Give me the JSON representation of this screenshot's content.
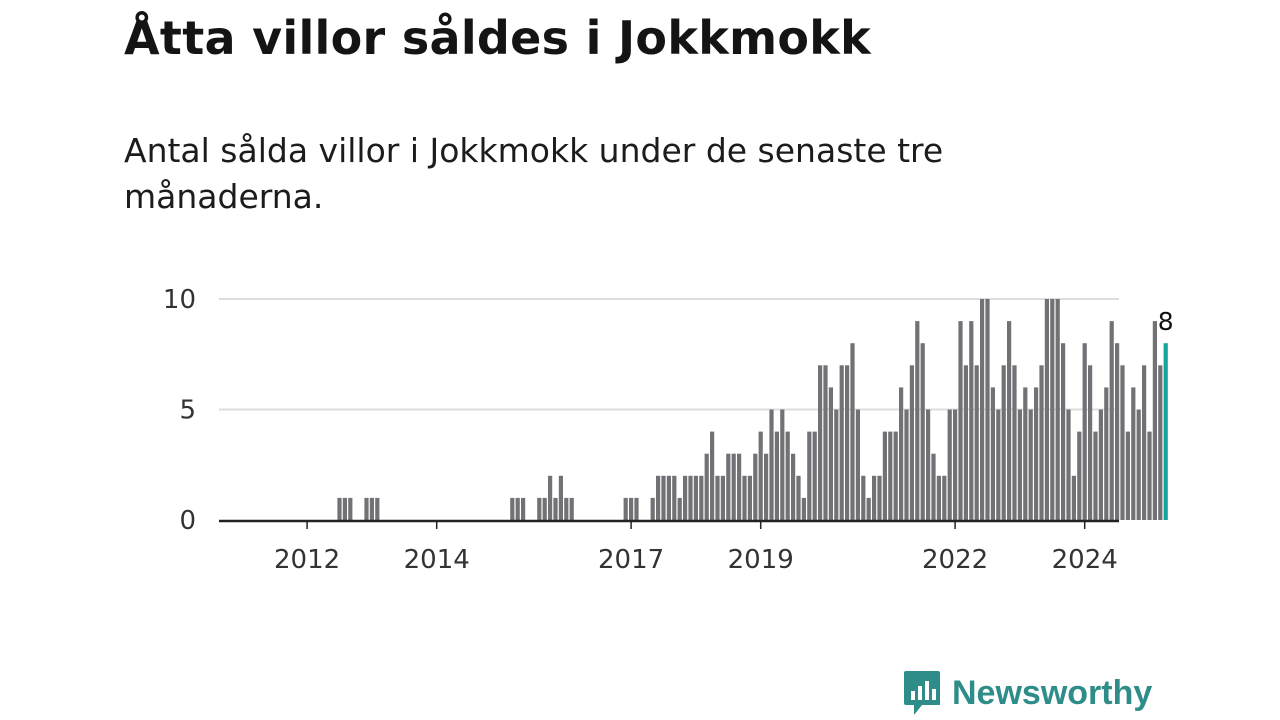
{
  "title": "Åtta villor såldes i Jokkmokk",
  "subtitle": "Antal sålda villor i Jokkmokk under de senaste tre månaderna.",
  "brand": {
    "name": "Newsworthy"
  },
  "colors": {
    "bar": "#727176",
    "highlight": "#18a39d",
    "grid": "#dddddd",
    "axis": "#222222",
    "brand": "#2f8d89"
  },
  "chart_data": {
    "type": "bar",
    "title": "Åtta villor såldes i Jokkmokk",
    "subtitle": "Antal sålda villor i Jokkmokk under de senaste tre månaderna.",
    "xlabel": "",
    "ylabel": "",
    "ylim": [
      0,
      10
    ],
    "yticks": [
      0,
      5,
      10
    ],
    "grid": true,
    "x_start": "2011-08",
    "x_tick_labels": [
      {
        "label": "2012",
        "index": 5
      },
      {
        "label": "2014",
        "index": 29
      },
      {
        "label": "2017",
        "index": 65
      },
      {
        "label": "2019",
        "index": 89
      },
      {
        "label": "2022",
        "index": 125
      },
      {
        "label": "2024",
        "index": 149
      }
    ],
    "values": [
      0,
      0,
      0,
      0,
      0,
      0,
      0,
      0,
      0,
      0,
      0,
      1,
      1,
      1,
      0,
      0,
      1,
      1,
      1,
      0,
      0,
      0,
      0,
      0,
      0,
      0,
      0,
      0,
      0,
      0,
      0,
      0,
      0,
      0,
      0,
      0,
      0,
      0,
      0,
      0,
      0,
      0,
      0,
      1,
      1,
      1,
      0,
      0,
      1,
      1,
      2,
      1,
      2,
      1,
      1,
      0,
      0,
      0,
      0,
      0,
      0,
      0,
      0,
      0,
      1,
      1,
      1,
      0,
      0,
      1,
      2,
      2,
      2,
      2,
      1,
      2,
      2,
      2,
      2,
      3,
      4,
      2,
      2,
      3,
      3,
      3,
      2,
      2,
      3,
      4,
      3,
      5,
      4,
      5,
      4,
      3,
      2,
      1,
      4,
      4,
      7,
      7,
      6,
      5,
      7,
      7,
      8,
      5,
      2,
      1,
      2,
      2,
      4,
      4,
      4,
      6,
      5,
      7,
      9,
      8,
      5,
      3,
      2,
      2,
      5,
      5,
      9,
      7,
      9,
      7,
      10,
      10,
      6,
      5,
      7,
      9,
      7,
      5,
      6,
      5,
      6,
      7,
      10,
      10,
      10,
      8,
      5,
      2,
      4,
      8,
      7,
      4,
      5,
      6,
      9,
      8,
      7,
      4,
      6,
      5,
      7,
      4,
      9,
      7,
      8
    ],
    "highlight_last": true,
    "annotation": {
      "label": "8",
      "value": 8
    }
  }
}
